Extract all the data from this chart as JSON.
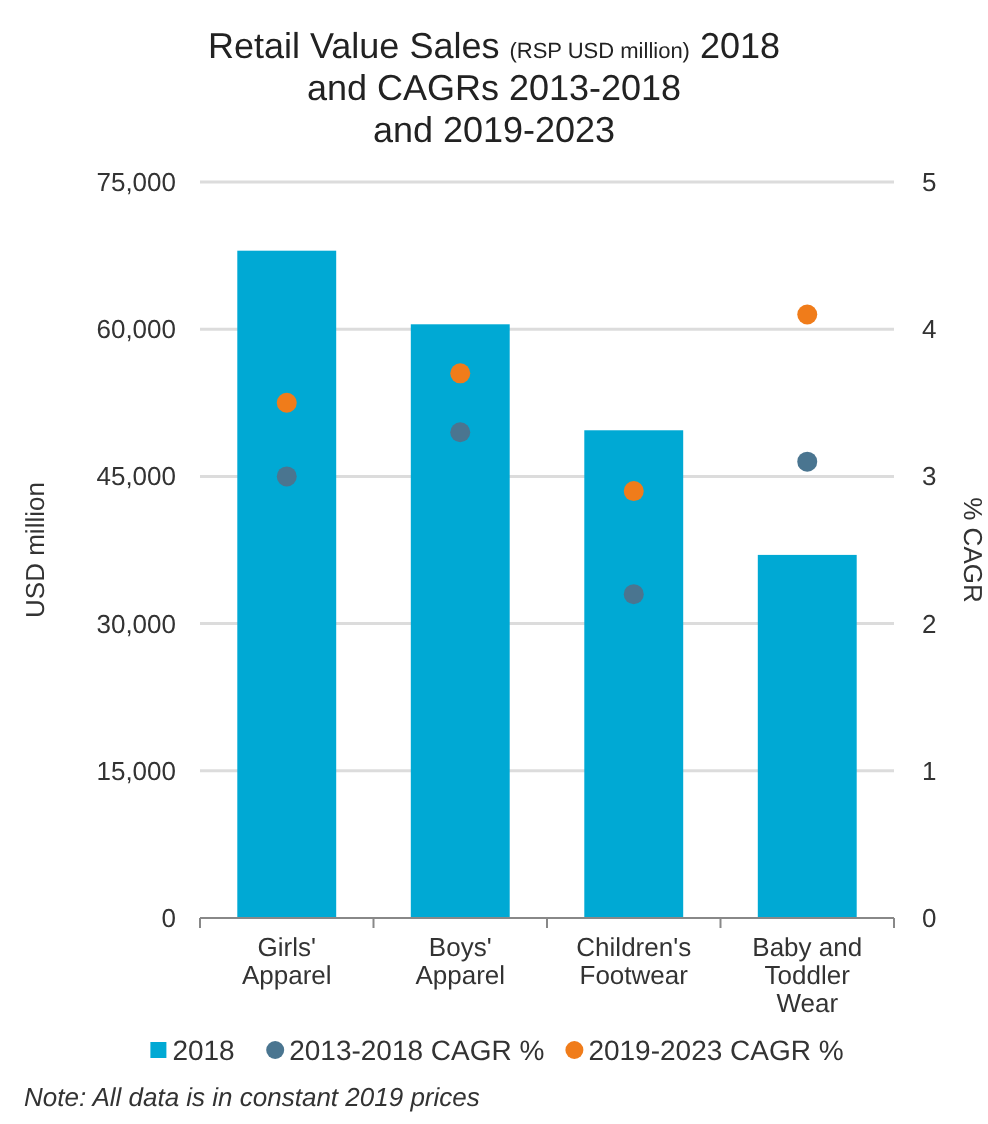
{
  "chart_data": {
    "type": "bar",
    "title": "Retail Value Sales (RSP USD million) 2018\nand CAGRs 2013-2018\nand 2019-2023",
    "ylabel": "USD million",
    "y2label": "% CAGR",
    "categories": [
      "Girls' Apparel",
      "Boys' Apparel",
      "Children's Footwear",
      "Baby and Toddler Wear"
    ],
    "series": [
      {
        "name": "2018",
        "color": "#00a9d4",
        "values": [
          68000,
          60500,
          49700,
          37000
        ]
      },
      {
        "name": "2013-2018 CAGR %",
        "type": "scatter",
        "axis": "y2",
        "color": "#4a7590",
        "values": [
          3.0,
          3.3,
          2.2,
          3.1
        ]
      },
      {
        "name": "2019-2023 CAGR %",
        "type": "scatter",
        "axis": "y2",
        "color": "#f07c1a",
        "values": [
          3.5,
          3.7,
          2.9,
          4.1
        ]
      }
    ],
    "ylim": [
      0,
      75000
    ],
    "yticks": [
      {
        "value": 0,
        "label": "0"
      },
      {
        "value": 15000,
        "label": "15,000"
      },
      {
        "value": 30000,
        "label": "30,000"
      },
      {
        "value": 45000,
        "label": "45,000"
      },
      {
        "value": 60000,
        "label": "60,000"
      },
      {
        "value": 75000,
        "label": "75,000"
      }
    ],
    "y2lim": [
      0,
      5
    ],
    "y2ticks": [
      0,
      1,
      2,
      3,
      4,
      5
    ],
    "grid": "y",
    "legend": "bottom",
    "marker": "circle",
    "annotations": [
      "Note: All data is in constant 2019 prices"
    ]
  }
}
